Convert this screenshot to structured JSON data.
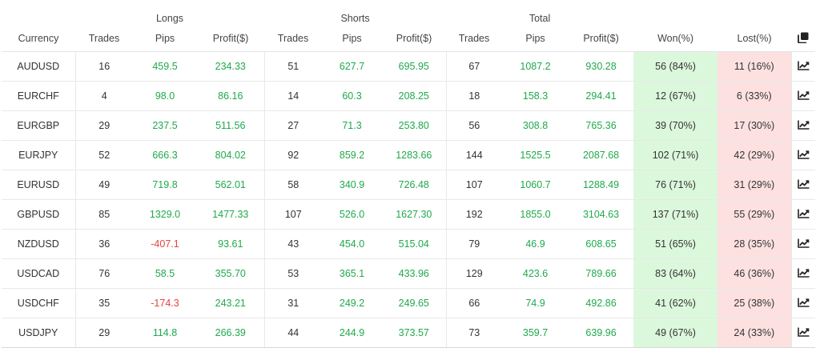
{
  "groups": {
    "longs": "Longs",
    "shorts": "Shorts",
    "total": "Total"
  },
  "headers": {
    "currency": "Currency",
    "l_trades": "Trades",
    "l_pips": "Pips",
    "l_profit": "Profit($)",
    "s_trades": "Trades",
    "s_pips": "Pips",
    "s_profit": "Profit($)",
    "t_trades": "Trades",
    "t_pips": "Pips",
    "t_profit": "Profit($)",
    "won": "Won(%)",
    "lost": "Lost(%)"
  },
  "icons": {
    "header": "copy-icon",
    "row": "chart-line-icon"
  },
  "colors": {
    "positive": "#1fa94b",
    "negative": "#e8423f",
    "won_bg": "#dcf8dc",
    "lost_bg": "#fde1e1"
  },
  "rows": [
    {
      "currency": "AUDUSD",
      "l_trades": "16",
      "l_pips": "459.5",
      "l_profit": "234.33",
      "s_trades": "51",
      "s_pips": "627.7",
      "s_profit": "695.95",
      "t_trades": "67",
      "t_pips": "1087.2",
      "t_profit": "930.28",
      "won": "56 (84%)",
      "lost": "11 (16%)"
    },
    {
      "currency": "EURCHF",
      "l_trades": "4",
      "l_pips": "98.0",
      "l_profit": "86.16",
      "s_trades": "14",
      "s_pips": "60.3",
      "s_profit": "208.25",
      "t_trades": "18",
      "t_pips": "158.3",
      "t_profit": "294.41",
      "won": "12 (67%)",
      "lost": "6 (33%)"
    },
    {
      "currency": "EURGBP",
      "l_trades": "29",
      "l_pips": "237.5",
      "l_profit": "511.56",
      "s_trades": "27",
      "s_pips": "71.3",
      "s_profit": "253.80",
      "t_trades": "56",
      "t_pips": "308.8",
      "t_profit": "765.36",
      "won": "39 (70%)",
      "lost": "17 (30%)"
    },
    {
      "currency": "EURJPY",
      "l_trades": "52",
      "l_pips": "666.3",
      "l_profit": "804.02",
      "s_trades": "92",
      "s_pips": "859.2",
      "s_profit": "1283.66",
      "t_trades": "144",
      "t_pips": "1525.5",
      "t_profit": "2087.68",
      "won": "102 (71%)",
      "lost": "42 (29%)"
    },
    {
      "currency": "EURUSD",
      "l_trades": "49",
      "l_pips": "719.8",
      "l_profit": "562.01",
      "s_trades": "58",
      "s_pips": "340.9",
      "s_profit": "726.48",
      "t_trades": "107",
      "t_pips": "1060.7",
      "t_profit": "1288.49",
      "won": "76 (71%)",
      "lost": "31 (29%)"
    },
    {
      "currency": "GBPUSD",
      "l_trades": "85",
      "l_pips": "1329.0",
      "l_profit": "1477.33",
      "s_trades": "107",
      "s_pips": "526.0",
      "s_profit": "1627.30",
      "t_trades": "192",
      "t_pips": "1855.0",
      "t_profit": "3104.63",
      "won": "137 (71%)",
      "lost": "55 (29%)"
    },
    {
      "currency": "NZDUSD",
      "l_trades": "36",
      "l_pips": "-407.1",
      "l_profit": "93.61",
      "s_trades": "43",
      "s_pips": "454.0",
      "s_profit": "515.04",
      "t_trades": "79",
      "t_pips": "46.9",
      "t_profit": "608.65",
      "won": "51 (65%)",
      "lost": "28 (35%)"
    },
    {
      "currency": "USDCAD",
      "l_trades": "76",
      "l_pips": "58.5",
      "l_profit": "355.70",
      "s_trades": "53",
      "s_pips": "365.1",
      "s_profit": "433.96",
      "t_trades": "129",
      "t_pips": "423.6",
      "t_profit": "789.66",
      "won": "83 (64%)",
      "lost": "46 (36%)"
    },
    {
      "currency": "USDCHF",
      "l_trades": "35",
      "l_pips": "-174.3",
      "l_profit": "243.21",
      "s_trades": "31",
      "s_pips": "249.2",
      "s_profit": "249.65",
      "t_trades": "66",
      "t_pips": "74.9",
      "t_profit": "492.86",
      "won": "41 (62%)",
      "lost": "25 (38%)"
    },
    {
      "currency": "USDJPY",
      "l_trades": "29",
      "l_pips": "114.8",
      "l_profit": "266.39",
      "s_trades": "44",
      "s_pips": "244.9",
      "s_profit": "373.57",
      "t_trades": "73",
      "t_pips": "359.7",
      "t_profit": "639.96",
      "won": "49 (67%)",
      "lost": "24 (33%)"
    }
  ]
}
